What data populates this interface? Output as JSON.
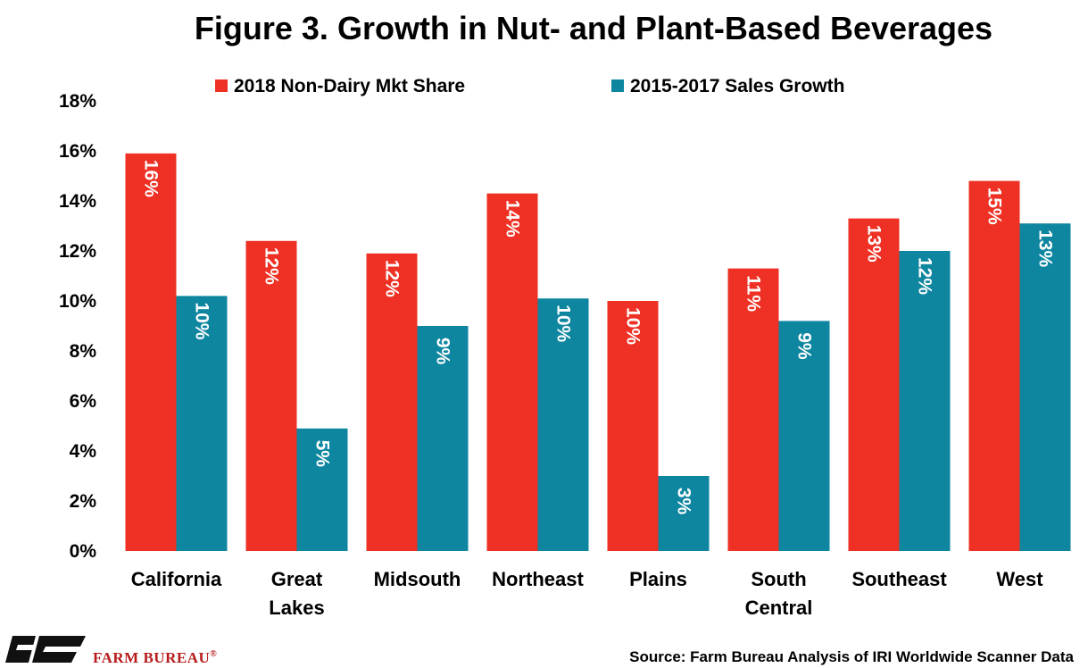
{
  "chart_data": {
    "type": "bar",
    "title": "Figure 3. Growth in Nut- and Plant-Based Beverages",
    "categories": [
      [
        "California"
      ],
      [
        "Great",
        "Lakes"
      ],
      [
        "Midsouth"
      ],
      [
        "Northeast"
      ],
      [
        "Plains"
      ],
      [
        "South",
        "Central"
      ],
      [
        "Southeast"
      ],
      [
        "West"
      ]
    ],
    "series": [
      {
        "name": "2018 Non-Dairy Mkt Share",
        "color": "#ee3124",
        "values": [
          15.9,
          12.4,
          11.9,
          14.3,
          10.0,
          11.3,
          13.3,
          14.8
        ],
        "labels": [
          "16%",
          "12%",
          "12%",
          "14%",
          "10%",
          "11%",
          "13%",
          "15%"
        ]
      },
      {
        "name": "2015-2017 Sales Growth",
        "color": "#0e86a0",
        "values": [
          10.2,
          4.9,
          9.0,
          10.1,
          3.0,
          9.2,
          12.0,
          13.1
        ],
        "labels": [
          "10%",
          "5%",
          "9%",
          "10%",
          "3%",
          "9%",
          "12%",
          "13%"
        ]
      }
    ],
    "y_ticks": [
      "0%",
      "2%",
      "4%",
      "6%",
      "8%",
      "10%",
      "12%",
      "14%",
      "16%",
      "18%"
    ],
    "ylim": [
      0,
      18
    ],
    "ylabel": "",
    "xlabel": "",
    "grid": false,
    "legend_position": "top"
  },
  "footer": {
    "brand": "FARM BUREAU",
    "brand_mark": "®",
    "logo_letters": "FB",
    "source": "Source: Farm Bureau Analysis of IRI Worldwide Scanner Data"
  }
}
